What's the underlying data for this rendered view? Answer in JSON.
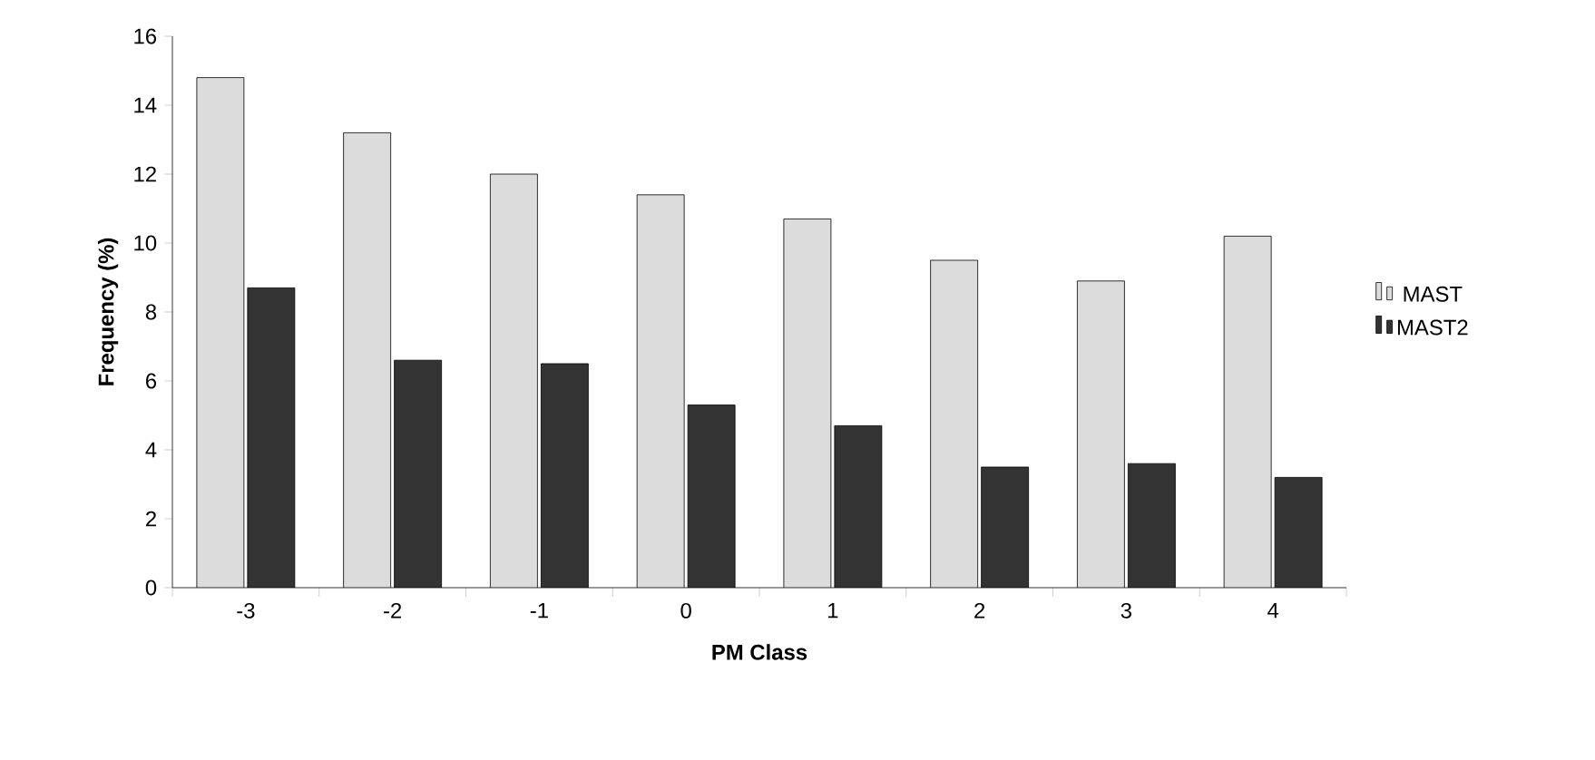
{
  "chart_data": {
    "type": "bar",
    "xlabel": "PM Class",
    "ylabel": "Frequency (%)",
    "categories": [
      "-3",
      "-2",
      "-1",
      "0",
      "1",
      "2",
      "3",
      "4"
    ],
    "series": [
      {
        "name": "MAST",
        "color": "#dcdcdc",
        "values": [
          14.8,
          13.2,
          12.0,
          11.4,
          10.7,
          9.5,
          8.9,
          10.2
        ]
      },
      {
        "name": "MAST2",
        "color": "#333333",
        "values": [
          8.7,
          6.6,
          6.5,
          5.3,
          4.7,
          3.5,
          3.6,
          3.2
        ]
      }
    ],
    "ylim": [
      0,
      16
    ],
    "yticks": [
      0,
      2,
      4,
      6,
      8,
      10,
      12,
      14,
      16
    ],
    "legend": "right",
    "grid": false
  }
}
